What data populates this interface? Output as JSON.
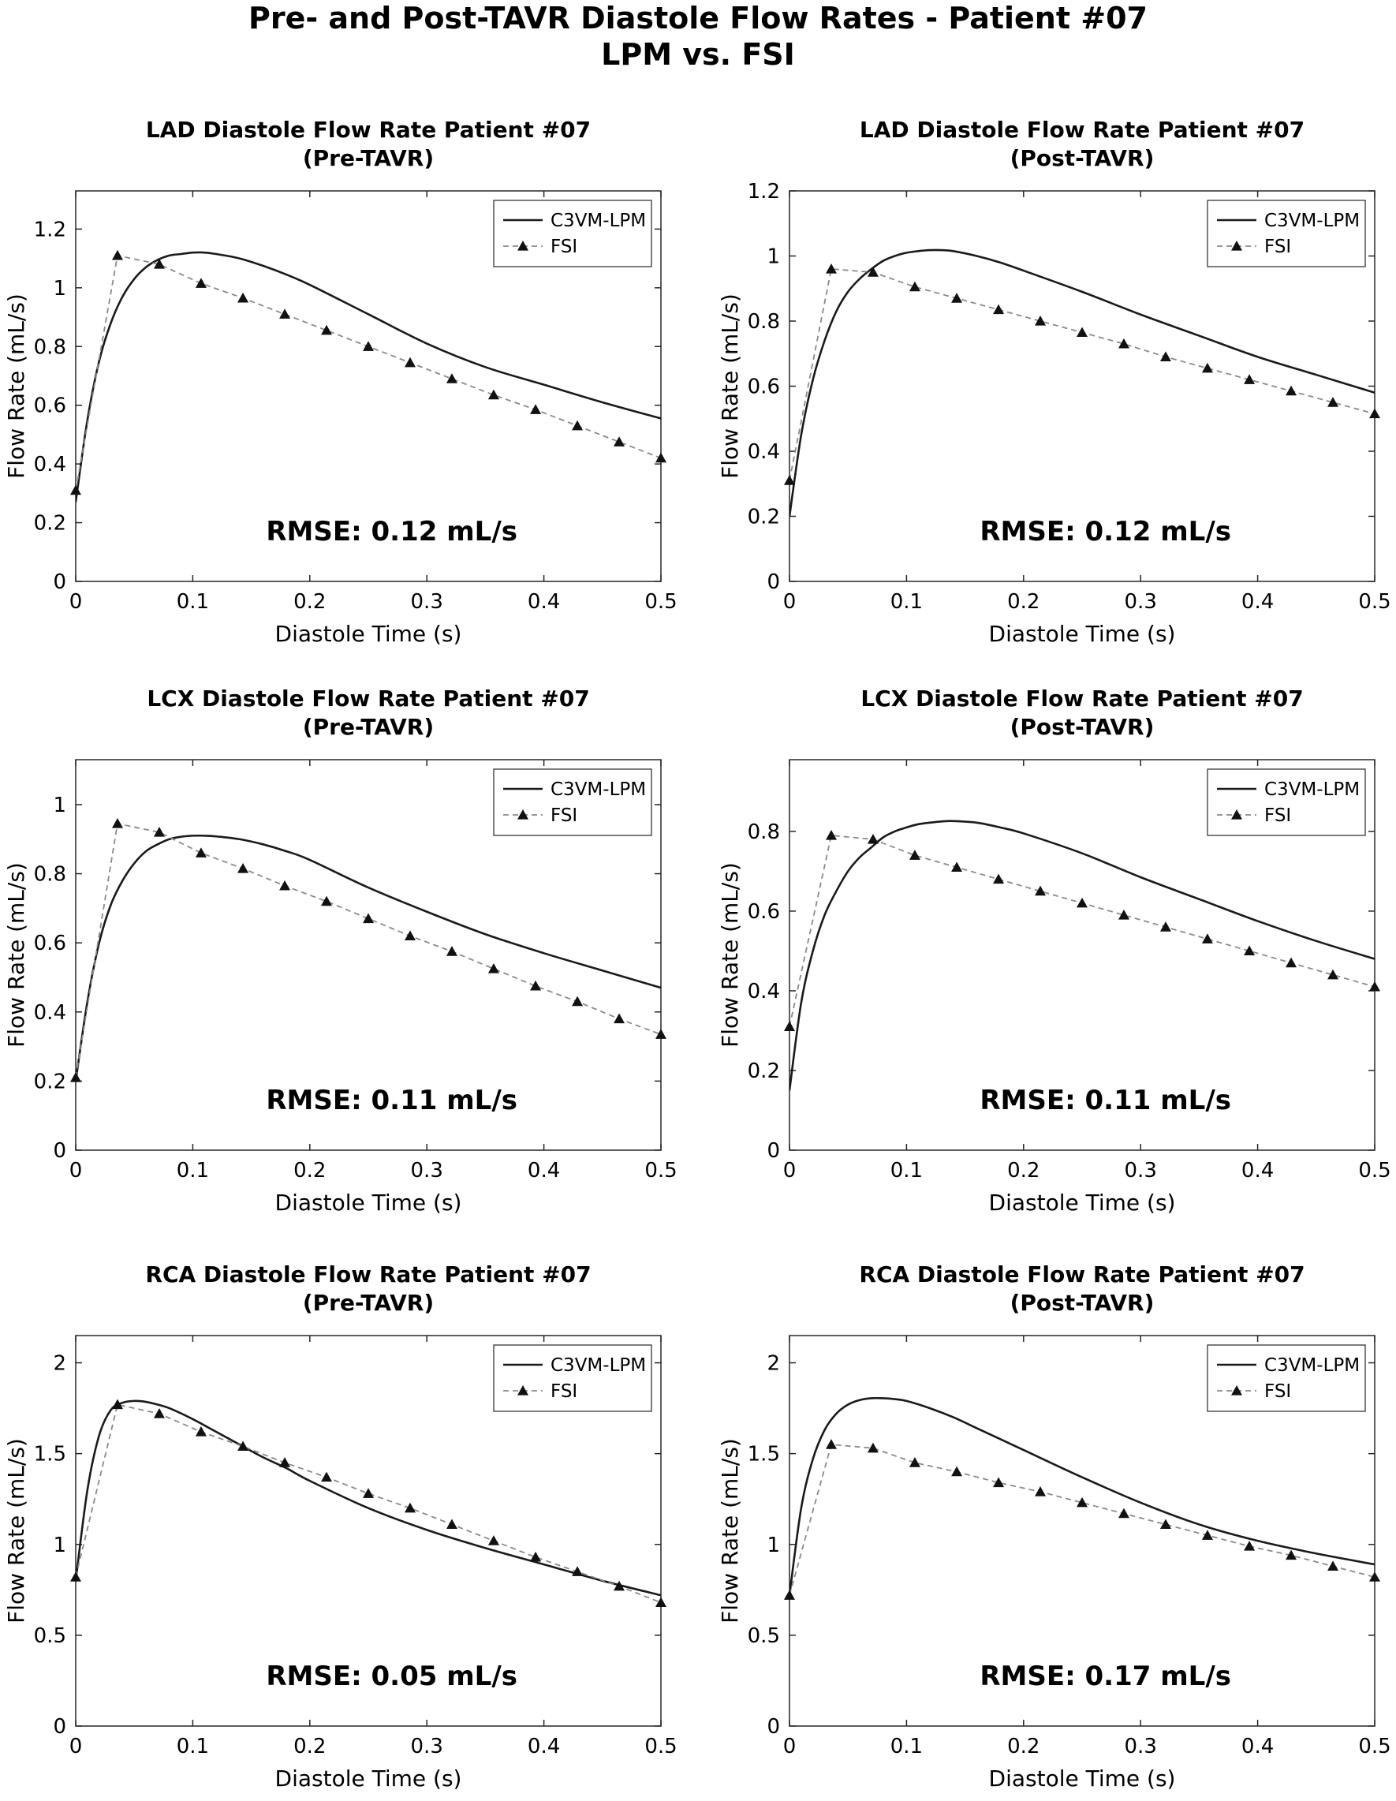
{
  "figure": {
    "title_line1": "Pre- and Post-TAVR Diastole Flow Rates - Patient #07",
    "title_line2": "LPM vs. FSI"
  },
  "legend": {
    "lpm_label": "C3VM-LPM",
    "fsi_label": "FSI"
  },
  "chart_data": [
    {
      "type": "line",
      "title_line1": "LAD Diastole Flow Rate Patient #07",
      "title_line2": "(Pre-TAVR)",
      "xlabel": "Diastole Time (s)",
      "ylabel": "Flow Rate (mL/s)",
      "xlim": [
        0,
        0.5
      ],
      "ylim": [
        0,
        1.33
      ],
      "xticks": [
        0,
        0.1,
        0.2,
        0.3,
        0.4,
        0.5
      ],
      "yticks": [
        0,
        0.2,
        0.4,
        0.6,
        0.8,
        1,
        1.2
      ],
      "annotation": "RMSE: 0.12 mL/s",
      "legend_position": "top-right",
      "series": [
        {
          "name": "C3VM-LPM",
          "style": "solid",
          "x": [
            0,
            0.01,
            0.02,
            0.03,
            0.04,
            0.05,
            0.06,
            0.07,
            0.08,
            0.09,
            0.1,
            0.11,
            0.12,
            0.14,
            0.16,
            0.18,
            0.2,
            0.25,
            0.3,
            0.35,
            0.4,
            0.45,
            0.5
          ],
          "y": [
            0.27,
            0.55,
            0.75,
            0.88,
            0.97,
            1.03,
            1.07,
            1.095,
            1.11,
            1.115,
            1.12,
            1.12,
            1.115,
            1.1,
            1.075,
            1.045,
            1.01,
            0.91,
            0.81,
            0.73,
            0.67,
            0.61,
            0.555
          ]
        },
        {
          "name": "FSI",
          "style": "dashed-triangle",
          "x": [
            0,
            0.0357,
            0.0714,
            0.1071,
            0.1429,
            0.1786,
            0.2143,
            0.25,
            0.2857,
            0.3214,
            0.3571,
            0.3929,
            0.4286,
            0.4643,
            0.5
          ],
          "y": [
            0.31,
            1.11,
            1.08,
            1.015,
            0.965,
            0.91,
            0.855,
            0.8,
            0.745,
            0.69,
            0.635,
            0.585,
            0.53,
            0.475,
            0.42
          ]
        }
      ]
    },
    {
      "type": "line",
      "title_line1": "LAD Diastole Flow Rate Patient #07",
      "title_line2": "(Post-TAVR)",
      "xlabel": "Diastole Time (s)",
      "ylabel": "Flow Rate (mL/s)",
      "xlim": [
        0,
        0.5
      ],
      "ylim": [
        0,
        1.2
      ],
      "xticks": [
        0,
        0.1,
        0.2,
        0.3,
        0.4,
        0.5
      ],
      "yticks": [
        0,
        0.2,
        0.4,
        0.6,
        0.8,
        1,
        1.2
      ],
      "annotation": "RMSE: 0.12 mL/s",
      "legend_position": "top-right",
      "series": [
        {
          "name": "C3VM-LPM",
          "style": "solid",
          "x": [
            0,
            0.01,
            0.02,
            0.03,
            0.04,
            0.05,
            0.06,
            0.07,
            0.08,
            0.09,
            0.1,
            0.11,
            0.12,
            0.13,
            0.14,
            0.16,
            0.18,
            0.2,
            0.25,
            0.3,
            0.35,
            0.4,
            0.45,
            0.5
          ],
          "y": [
            0.2,
            0.45,
            0.62,
            0.74,
            0.83,
            0.89,
            0.93,
            0.96,
            0.985,
            1.0,
            1.01,
            1.015,
            1.018,
            1.018,
            1.015,
            1.0,
            0.98,
            0.955,
            0.89,
            0.82,
            0.755,
            0.69,
            0.635,
            0.58
          ]
        },
        {
          "name": "FSI",
          "style": "dashed-triangle",
          "x": [
            0,
            0.0357,
            0.0714,
            0.1071,
            0.1429,
            0.1786,
            0.2143,
            0.25,
            0.2857,
            0.3214,
            0.3571,
            0.3929,
            0.4286,
            0.4643,
            0.5
          ],
          "y": [
            0.31,
            0.96,
            0.95,
            0.905,
            0.87,
            0.835,
            0.8,
            0.765,
            0.73,
            0.69,
            0.655,
            0.62,
            0.585,
            0.55,
            0.515
          ]
        }
      ]
    },
    {
      "type": "line",
      "title_line1": "LCX Diastole Flow Rate Patient #07",
      "title_line2": "(Pre-TAVR)",
      "xlabel": "Diastole Time (s)",
      "ylabel": "Flow Rate (mL/s)",
      "xlim": [
        0,
        0.5
      ],
      "ylim": [
        0,
        1.13
      ],
      "xticks": [
        0,
        0.1,
        0.2,
        0.3,
        0.4,
        0.5
      ],
      "yticks": [
        0,
        0.2,
        0.4,
        0.6,
        0.8,
        1
      ],
      "annotation": "RMSE: 0.11 mL/s",
      "legend_position": "top-right",
      "series": [
        {
          "name": "C3VM-LPM",
          "style": "solid",
          "x": [
            0,
            0.01,
            0.02,
            0.03,
            0.04,
            0.05,
            0.06,
            0.07,
            0.08,
            0.09,
            0.1,
            0.11,
            0.12,
            0.14,
            0.16,
            0.18,
            0.2,
            0.25,
            0.3,
            0.35,
            0.4,
            0.45,
            0.5
          ],
          "y": [
            0.2,
            0.43,
            0.6,
            0.71,
            0.78,
            0.83,
            0.865,
            0.885,
            0.9,
            0.907,
            0.91,
            0.91,
            0.908,
            0.9,
            0.885,
            0.865,
            0.84,
            0.76,
            0.69,
            0.625,
            0.57,
            0.52,
            0.47
          ]
        },
        {
          "name": "FSI",
          "style": "dashed-triangle",
          "x": [
            0,
            0.0357,
            0.0714,
            0.1071,
            0.1429,
            0.1786,
            0.2143,
            0.25,
            0.2857,
            0.3214,
            0.3571,
            0.3929,
            0.4286,
            0.4643,
            0.5
          ],
          "y": [
            0.21,
            0.945,
            0.92,
            0.86,
            0.815,
            0.765,
            0.72,
            0.67,
            0.62,
            0.575,
            0.525,
            0.475,
            0.43,
            0.38,
            0.335
          ]
        }
      ]
    },
    {
      "type": "line",
      "title_line1": "LCX Diastole Flow Rate Patient #07",
      "title_line2": "(Post-TAVR)",
      "xlabel": "Diastole Time (s)",
      "ylabel": "Flow Rate (mL/s)",
      "xlim": [
        0,
        0.5
      ],
      "ylim": [
        0,
        0.98
      ],
      "xticks": [
        0,
        0.1,
        0.2,
        0.3,
        0.4,
        0.5
      ],
      "yticks": [
        0,
        0.2,
        0.4,
        0.6,
        0.8
      ],
      "annotation": "RMSE: 0.11 mL/s",
      "legend_position": "top-right",
      "series": [
        {
          "name": "C3VM-LPM",
          "style": "solid",
          "x": [
            0,
            0.01,
            0.02,
            0.03,
            0.04,
            0.05,
            0.06,
            0.07,
            0.08,
            0.09,
            0.1,
            0.11,
            0.12,
            0.13,
            0.14,
            0.16,
            0.18,
            0.2,
            0.25,
            0.3,
            0.35,
            0.4,
            0.45,
            0.5
          ],
          "y": [
            0.15,
            0.37,
            0.5,
            0.59,
            0.65,
            0.7,
            0.735,
            0.76,
            0.785,
            0.8,
            0.81,
            0.818,
            0.822,
            0.825,
            0.826,
            0.822,
            0.81,
            0.795,
            0.745,
            0.685,
            0.63,
            0.575,
            0.525,
            0.48
          ]
        },
        {
          "name": "FSI",
          "style": "dashed-triangle",
          "x": [
            0,
            0.0357,
            0.0714,
            0.1071,
            0.1429,
            0.1786,
            0.2143,
            0.25,
            0.2857,
            0.3214,
            0.3571,
            0.3929,
            0.4286,
            0.4643,
            0.5
          ],
          "y": [
            0.31,
            0.79,
            0.78,
            0.74,
            0.71,
            0.68,
            0.65,
            0.62,
            0.59,
            0.56,
            0.53,
            0.5,
            0.47,
            0.44,
            0.41
          ]
        }
      ]
    },
    {
      "type": "line",
      "title_line1": "RCA Diastole Flow Rate Patient #07",
      "title_line2": "(Pre-TAVR)",
      "xlabel": "Diastole Time (s)",
      "ylabel": "Flow Rate (mL/s)",
      "xlim": [
        0,
        0.5
      ],
      "ylim": [
        0,
        2.15
      ],
      "xticks": [
        0,
        0.1,
        0.2,
        0.3,
        0.4,
        0.5
      ],
      "yticks": [
        0,
        0.5,
        1,
        1.5,
        2
      ],
      "annotation": "RMSE: 0.05 mL/s",
      "legend_position": "top-right",
      "series": [
        {
          "name": "C3VM-LPM",
          "style": "solid",
          "x": [
            0,
            0.01,
            0.02,
            0.03,
            0.04,
            0.05,
            0.06,
            0.07,
            0.08,
            0.1,
            0.12,
            0.14,
            0.16,
            0.18,
            0.2,
            0.25,
            0.3,
            0.35,
            0.4,
            0.45,
            0.5
          ],
          "y": [
            0.8,
            1.3,
            1.6,
            1.74,
            1.78,
            1.79,
            1.785,
            1.77,
            1.75,
            1.69,
            1.62,
            1.55,
            1.48,
            1.42,
            1.35,
            1.2,
            1.08,
            0.98,
            0.89,
            0.8,
            0.72
          ]
        },
        {
          "name": "FSI",
          "style": "dashed-triangle",
          "x": [
            0,
            0.0357,
            0.0714,
            0.1071,
            0.1429,
            0.1786,
            0.2143,
            0.25,
            0.2857,
            0.3214,
            0.3571,
            0.3929,
            0.4286,
            0.4643,
            0.5
          ],
          "y": [
            0.82,
            1.77,
            1.72,
            1.62,
            1.54,
            1.45,
            1.37,
            1.28,
            1.2,
            1.11,
            1.02,
            0.93,
            0.85,
            0.77,
            0.68
          ]
        }
      ]
    },
    {
      "type": "line",
      "title_line1": "RCA Diastole Flow Rate Patient #07",
      "title_line2": "(Post-TAVR)",
      "xlabel": "Diastole Time (s)",
      "ylabel": "Flow Rate (mL/s)",
      "xlim": [
        0,
        0.5
      ],
      "ylim": [
        0,
        2.15
      ],
      "xticks": [
        0,
        0.1,
        0.2,
        0.3,
        0.4,
        0.5
      ],
      "yticks": [
        0,
        0.5,
        1,
        1.5,
        2
      ],
      "annotation": "RMSE: 0.17 mL/s",
      "legend_position": "top-right",
      "series": [
        {
          "name": "C3VM-LPM",
          "style": "solid",
          "x": [
            0,
            0.01,
            0.02,
            0.03,
            0.04,
            0.05,
            0.06,
            0.07,
            0.08,
            0.09,
            0.1,
            0.12,
            0.14,
            0.16,
            0.18,
            0.2,
            0.25,
            0.3,
            0.35,
            0.4,
            0.45,
            0.5
          ],
          "y": [
            0.72,
            1.2,
            1.47,
            1.63,
            1.72,
            1.77,
            1.795,
            1.805,
            1.805,
            1.8,
            1.79,
            1.75,
            1.7,
            1.64,
            1.58,
            1.52,
            1.37,
            1.23,
            1.11,
            1.02,
            0.95,
            0.89
          ]
        },
        {
          "name": "FSI",
          "style": "dashed-triangle",
          "x": [
            0,
            0.0357,
            0.0714,
            0.1071,
            0.1429,
            0.1786,
            0.2143,
            0.25,
            0.2857,
            0.3214,
            0.3571,
            0.3929,
            0.4286,
            0.4643,
            0.5
          ],
          "y": [
            0.72,
            1.55,
            1.53,
            1.45,
            1.4,
            1.34,
            1.29,
            1.23,
            1.17,
            1.11,
            1.05,
            0.99,
            0.94,
            0.88,
            0.82
          ]
        }
      ]
    }
  ]
}
